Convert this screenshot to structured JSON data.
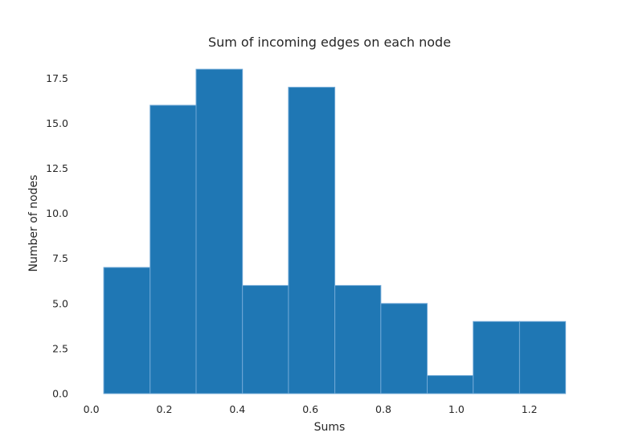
{
  "chart_data": {
    "type": "bar",
    "title": "Sum of incoming edges on each node",
    "xlabel": "Sums",
    "ylabel": "Number of nodes",
    "bins": [
      {
        "x0": 0.034,
        "x1": 0.161,
        "count": 7
      },
      {
        "x0": 0.161,
        "x1": 0.287,
        "count": 16
      },
      {
        "x0": 0.287,
        "x1": 0.414,
        "count": 18
      },
      {
        "x0": 0.414,
        "x1": 0.54,
        "count": 6
      },
      {
        "x0": 0.54,
        "x1": 0.667,
        "count": 17
      },
      {
        "x0": 0.667,
        "x1": 0.793,
        "count": 6
      },
      {
        "x0": 0.793,
        "x1": 0.92,
        "count": 5
      },
      {
        "x0": 0.92,
        "x1": 1.046,
        "count": 1
      },
      {
        "x0": 1.046,
        "x1": 1.173,
        "count": 4
      },
      {
        "x0": 1.173,
        "x1": 1.299,
        "count": 4
      }
    ],
    "xlim": [
      -0.03,
      1.335
    ],
    "ylim": [
      0,
      18.9
    ],
    "x_ticks": [
      "0.0",
      "0.2",
      "0.4",
      "0.6",
      "0.8",
      "1.0",
      "1.2"
    ],
    "y_ticks": [
      "0.0",
      "2.5",
      "5.0",
      "7.5",
      "10.0",
      "12.5",
      "15.0",
      "17.5"
    ],
    "grid": false,
    "bar_color": "#1f77b4",
    "bar_edge_color": "#6fa8d6"
  }
}
